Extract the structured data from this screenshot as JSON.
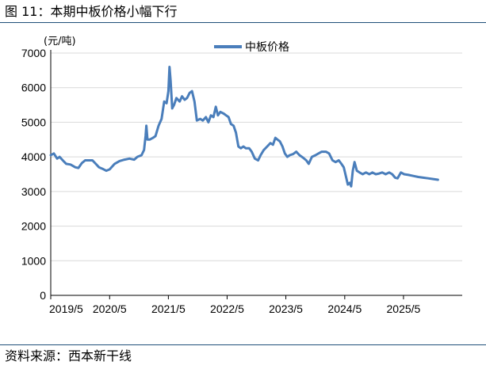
{
  "figure": {
    "title": "图 11：本期中板价格小幅下行",
    "source": "资料来源：西本新干线"
  },
  "chart_data": {
    "type": "line",
    "yunit": "(元/吨)",
    "ylim": [
      0,
      7000
    ],
    "yticks": [
      0,
      1000,
      2000,
      3000,
      4000,
      5000,
      6000,
      7000
    ],
    "xlim": [
      "2019-05",
      "2026-05"
    ],
    "xticks": [
      "2019/5",
      "2020/5",
      "2021/5",
      "2022/5",
      "2023/5",
      "2024/5",
      "2025/5"
    ],
    "grid": "horizontal",
    "legend": "top-center",
    "series_color": "#4a7ebb",
    "series": [
      {
        "name": "中板价格",
        "points": [
          [
            "2019-05-01",
            4050
          ],
          [
            "2019-05-20",
            4100
          ],
          [
            "2019-06-10",
            3950
          ],
          [
            "2019-06-25",
            4000
          ],
          [
            "2019-07-15",
            3900
          ],
          [
            "2019-08-05",
            3800
          ],
          [
            "2019-09-01",
            3780
          ],
          [
            "2019-10-01",
            3700
          ],
          [
            "2019-10-20",
            3680
          ],
          [
            "2019-11-10",
            3820
          ],
          [
            "2019-12-01",
            3900
          ],
          [
            "2020-01-15",
            3900
          ],
          [
            "2020-02-05",
            3800
          ],
          [
            "2020-02-25",
            3700
          ],
          [
            "2020-03-20",
            3650
          ],
          [
            "2020-04-10",
            3600
          ],
          [
            "2020-05-01",
            3640
          ],
          [
            "2020-06-01",
            3800
          ],
          [
            "2020-07-01",
            3880
          ],
          [
            "2020-08-01",
            3920
          ],
          [
            "2020-09-01",
            3950
          ],
          [
            "2020-10-01",
            3920
          ],
          [
            "2020-10-20",
            4000
          ],
          [
            "2020-11-15",
            4050
          ],
          [
            "2020-12-01",
            4200
          ],
          [
            "2020-12-10",
            4600
          ],
          [
            "2020-12-15",
            4900
          ],
          [
            "2020-12-22",
            4500
          ],
          [
            "2021-01-05",
            4500
          ],
          [
            "2021-01-25",
            4550
          ],
          [
            "2021-02-10",
            4600
          ],
          [
            "2021-03-01",
            4900
          ],
          [
            "2021-03-20",
            5100
          ],
          [
            "2021-04-05",
            5600
          ],
          [
            "2021-04-20",
            5550
          ],
          [
            "2021-05-01",
            5900
          ],
          [
            "2021-05-08",
            6600
          ],
          [
            "2021-05-15",
            6200
          ],
          [
            "2021-05-25",
            5400
          ],
          [
            "2021-06-05",
            5500
          ],
          [
            "2021-06-20",
            5700
          ],
          [
            "2021-07-10",
            5600
          ],
          [
            "2021-07-25",
            5750
          ],
          [
            "2021-08-10",
            5650
          ],
          [
            "2021-08-25",
            5700
          ],
          [
            "2021-09-10",
            5850
          ],
          [
            "2021-09-25",
            5900
          ],
          [
            "2021-10-10",
            5600
          ],
          [
            "2021-10-25",
            5050
          ],
          [
            "2021-11-15",
            5100
          ],
          [
            "2021-12-01",
            5050
          ],
          [
            "2021-12-20",
            5150
          ],
          [
            "2022-01-05",
            5000
          ],
          [
            "2022-01-20",
            5200
          ],
          [
            "2022-02-05",
            5150
          ],
          [
            "2022-02-20",
            5450
          ],
          [
            "2022-03-05",
            5200
          ],
          [
            "2022-03-20",
            5300
          ],
          [
            "2022-04-10",
            5250
          ],
          [
            "2022-04-25",
            5200
          ],
          [
            "2022-05-10",
            5150
          ],
          [
            "2022-05-25",
            4950
          ],
          [
            "2022-06-10",
            4900
          ],
          [
            "2022-06-25",
            4700
          ],
          [
            "2022-07-10",
            4300
          ],
          [
            "2022-07-25",
            4250
          ],
          [
            "2022-08-10",
            4300
          ],
          [
            "2022-08-25",
            4250
          ],
          [
            "2022-09-15",
            4250
          ],
          [
            "2022-10-01",
            4150
          ],
          [
            "2022-10-20",
            3950
          ],
          [
            "2022-11-10",
            3900
          ],
          [
            "2022-11-25",
            4050
          ],
          [
            "2022-12-15",
            4200
          ],
          [
            "2023-01-05",
            4300
          ],
          [
            "2023-01-25",
            4400
          ],
          [
            "2023-02-10",
            4350
          ],
          [
            "2023-02-25",
            4550
          ],
          [
            "2023-03-10",
            4500
          ],
          [
            "2023-03-25",
            4450
          ],
          [
            "2023-04-10",
            4300
          ],
          [
            "2023-04-25",
            4100
          ],
          [
            "2023-05-10",
            4000
          ],
          [
            "2023-05-25",
            4050
          ],
          [
            "2023-06-15",
            4080
          ],
          [
            "2023-07-05",
            4150
          ],
          [
            "2023-07-25",
            4050
          ],
          [
            "2023-08-15",
            3980
          ],
          [
            "2023-09-05",
            3900
          ],
          [
            "2023-09-20",
            3800
          ],
          [
            "2023-10-10",
            4000
          ],
          [
            "2023-11-01",
            4050
          ],
          [
            "2023-11-20",
            4100
          ],
          [
            "2023-12-10",
            4150
          ],
          [
            "2024-01-05",
            4150
          ],
          [
            "2024-01-25",
            4100
          ],
          [
            "2024-02-15",
            3900
          ],
          [
            "2024-03-05",
            3850
          ],
          [
            "2024-03-25",
            3900
          ],
          [
            "2024-04-10",
            3800
          ],
          [
            "2024-04-25",
            3700
          ],
          [
            "2024-05-10",
            3400
          ],
          [
            "2024-05-20",
            3200
          ],
          [
            "2024-06-01",
            3250
          ],
          [
            "2024-06-10",
            3150
          ],
          [
            "2024-06-20",
            3600
          ],
          [
            "2024-07-01",
            3850
          ],
          [
            "2024-07-15",
            3600
          ],
          [
            "2024-08-01",
            3550
          ],
          [
            "2024-08-20",
            3500
          ],
          [
            "2024-09-10",
            3550
          ],
          [
            "2024-10-01",
            3500
          ],
          [
            "2024-10-20",
            3550
          ],
          [
            "2024-11-10",
            3500
          ],
          [
            "2024-12-01",
            3520
          ],
          [
            "2024-12-20",
            3550
          ],
          [
            "2025-01-10",
            3500
          ],
          [
            "2025-02-01",
            3550
          ],
          [
            "2025-02-20",
            3500
          ],
          [
            "2025-03-10",
            3400
          ],
          [
            "2025-03-25",
            3380
          ],
          [
            "2025-04-15",
            3550
          ],
          [
            "2025-05-05",
            3500
          ],
          [
            "2025-06-01",
            3480
          ],
          [
            "2025-07-01",
            3450
          ],
          [
            "2025-08-01",
            3420
          ],
          [
            "2025-09-01",
            3400
          ],
          [
            "2025-10-01",
            3380
          ],
          [
            "2025-11-01",
            3360
          ],
          [
            "2025-12-01",
            3340
          ]
        ]
      }
    ]
  }
}
